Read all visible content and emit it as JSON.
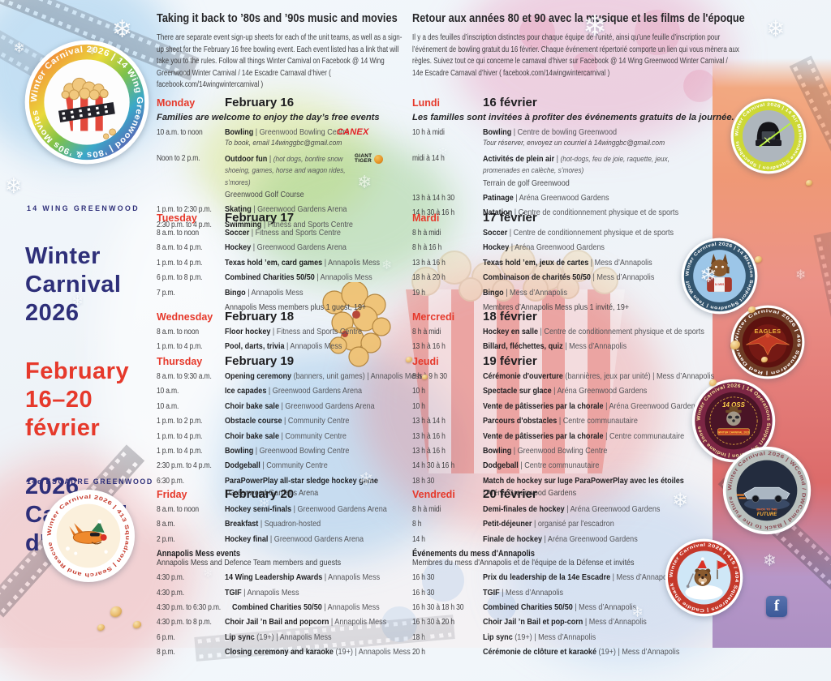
{
  "sidebar": {
    "wing_en": "14 WING GREENWOOD",
    "title_en": "Winter\nCarnival\n2026",
    "dates": "February\n16–20\nfévrier",
    "title_fr": "2026\nCarnaval\nd'hiver",
    "wing_fr": "14e ESCADRE GREENWOOD"
  },
  "english": {
    "heading": "Taking it back to ’80s and ’90s music and movies",
    "intro": "There are separate event sign-up sheets for each of the unit teams, as well as a sign-up sheet for the February 16 free bowling event. Each event listed has a link that will take you to the rules. Follow all things Winter Carnival on Facebook @ 14 Wing Greenwood Winter Carnival / 14e Escadre Carnaval d’hiver ( facebook.com/14wingwintercarnival )",
    "days": [
      {
        "day": "Monday",
        "date": "February 16",
        "subtitle": "Families are welcome to enjoy the day’s free events",
        "events": [
          {
            "time": "10 a.m. to noon",
            "bold": "Bowling",
            "rest": " | Greenwood Bowling Centre",
            "sub": "To book, email 14winggbc@gmail.com",
            "logo": "canex"
          },
          {
            "time": "Noon to 2 p.m.",
            "bold": "Outdoor fun",
            "rest": " | ",
            "rest_italic": "(hot dogs, bonfire snow shoeing, games, horse and wagon rides, s’mores)",
            "line2": "Greenwood Golf Course",
            "logo": "giant_tiger",
            "wrap": true
          },
          {
            "time": "1 p.m. to 2:30 p.m.",
            "bold": "Skating",
            "rest": " | Greenwood Gardens Arena"
          },
          {
            "time": "2:30 p.m. to 4 p.m.",
            "bold": "Swimming",
            "rest": " | Fitness and Sports Centre"
          }
        ]
      },
      {
        "day": "Tuesday",
        "date": "February 17",
        "events": [
          {
            "time": "8 a.m. to noon",
            "bold": "Soccer",
            "rest": " | Fitness and Sports Centre"
          },
          {
            "time": "8 a.m. to 4 p.m.",
            "bold": "Hockey",
            "rest": " | Greenwood Gardens Arena"
          },
          {
            "time": "1 p.m. to 4 p.m.",
            "bold": "Texas hold ’em, card games",
            "rest": " | Annapolis Mess"
          },
          {
            "time": "6 p.m. to 8 p.m.",
            "bold": "Combined Charities 50/50",
            "rest": " | Annapolis Mess"
          },
          {
            "time": "7 p.m.",
            "bold": "Bingo",
            "rest": " | Annapolis Mess"
          },
          {
            "time": "",
            "note": "Annapolis Mess members plus 1 guest, 19+"
          }
        ]
      },
      {
        "day": "Wednesday",
        "date": "February 18",
        "events": [
          {
            "time": "8 a.m. to noon",
            "bold": "Floor hockey",
            "rest": " | Fitness and Sports Centre"
          },
          {
            "time": "1 p.m. to 4 p.m.",
            "bold": "Pool, darts, trivia",
            "rest": " | Annapolis Mess"
          }
        ]
      },
      {
        "day": "Thursday",
        "date": "February 19",
        "events": [
          {
            "time": "8 a.m. to 9:30 a.m.",
            "bold": "Opening ceremony",
            "rest": " (banners, unit games) | Annapolis Mess"
          },
          {
            "time": "10 a.m.",
            "bold": "Ice capades",
            "rest": " | Greenwood Gardens Arena"
          },
          {
            "time": "10 a.m.",
            "bold": "Choir bake sale",
            "rest": " | Greenwood Gardens Arena"
          },
          {
            "time": "1 p.m. to 2 p.m.",
            "bold": "Obstacle course",
            "rest": " | Community Centre"
          },
          {
            "time": "1 p.m. to 4 p.m.",
            "bold": "Choir bake sale",
            "rest": " | Community Centre"
          },
          {
            "time": "1 p.m. to 4 p.m.",
            "bold": "Bowling",
            "rest": " | Greenwood Bowling Centre"
          },
          {
            "time": "2:30 p.m. to 4 p.m.",
            "bold": "Dodgeball",
            "rest": " | Community Centre"
          },
          {
            "time": "6:30 p.m.",
            "bold": "ParaPowerPlay all-star sledge hockey game",
            "line2": "| Greenwood Gardens Arena"
          }
        ]
      },
      {
        "day": "Friday",
        "date": "February 20",
        "events": [
          {
            "time": "8 a.m. to noon",
            "bold": "Hockey semi-finals",
            "rest": " | Greenwood Gardens Arena"
          },
          {
            "time": "8 a.m.",
            "bold": "Breakfast",
            "rest": " | Squadron-hosted"
          },
          {
            "time": "2 p.m.",
            "bold": "Hockey final",
            "rest": " | Greenwood Gardens Arena"
          },
          {
            "wide_note_bold": "Annapolis Mess events",
            "wide_note": "Annapolis Mess and Defence Team members and guests"
          },
          {
            "time": "4:30 p.m.",
            "bold": "14 Wing Leadership Awards",
            "rest": " | Annapolis Mess"
          },
          {
            "time": "4:30 p.m.",
            "bold": "TGIF",
            "rest": " | Annapolis Mess"
          },
          {
            "time": "4:30 p.m. to 6:30 p.m.",
            "bold": "Combined Charities 50/50",
            "rest": " | Annapolis Mess"
          },
          {
            "time": "4:30 p.m. to 8 p.m.",
            "bold": "Choir Jail ’n Bail and popcorn",
            "rest": " | Annapolis Mess"
          },
          {
            "time": "6 p.m.",
            "bold": "Lip sync",
            "rest": " (19+) | Annapolis Mess"
          },
          {
            "time": "8 p.m.",
            "bold": "Closing ceremony and karaoke",
            "rest": " (19+) | Annapolis Mess"
          }
        ]
      }
    ]
  },
  "french": {
    "heading": "Retour aux années 80 et 90 avec la musique et les films de l'époque",
    "intro": "Il y a des feuilles d’inscription distinctes pour chaque équipe de l’unité, ainsi qu’une feuille d’inscription pour l’événement de bowling gratuit du 16 février. Chaque événement répertorié comporte un lien qui vous mènera aux règles. Suivez tout ce qui concerne le carnaval d’hiver sur Facebook @ 14 Wing Greenwood Winter Carnival / 14e Escadre Carnaval d’hiver ( facebook.com/14wingwintercarnival )",
    "days": [
      {
        "day": "Lundi",
        "date": "16 février",
        "subtitle": "Les familles sont invitées à profiter des événements gratuits de la journée.",
        "events": [
          {
            "time": "10 h à midi",
            "bold": "Bowling",
            "rest": " | Centre de bowling Greenwood",
            "sub": "Tour réserver, envoyez un courriel à 14winggbc@gmail.com"
          },
          {
            "time": "midi à 14 h",
            "bold": "Activités de plein air",
            "rest": " | ",
            "rest_italic": "(hot-dogs, feu de joie, raquette, jeux, promenades en calèche, s’mores)",
            "line2": "Terrain de golf Greenwood",
            "wrap": true
          },
          {
            "time": "13 h à 14 h 30",
            "bold": "Patinage",
            "rest": " | Aréna Greenwood Gardens"
          },
          {
            "time": "14 h 30 à 16 h",
            "bold": "Natation",
            "rest": " | Centre de conditionnement physique et de sports"
          }
        ]
      },
      {
        "day": "Mardi",
        "date": "17 février",
        "events": [
          {
            "time": "8 h à midi",
            "bold": "Soccer",
            "rest": " | Centre de conditionnement physique et de sports"
          },
          {
            "time": "8 h à 16 h",
            "bold": "Hockey",
            "rest": " | Aréna Greenwood Gardens"
          },
          {
            "time": "13 h à 16 h",
            "bold": "Texas hold ’em, jeux de cartes",
            "rest": " | Mess d’Annapolis"
          },
          {
            "time": "18 h à 20 h",
            "bold": "Combinaison de charités 50/50",
            "rest": " | Mess d’Annapolis"
          },
          {
            "time": "19 h",
            "bold": "Bingo",
            "rest": " | Mess d’Annapolis"
          },
          {
            "time": "",
            "note": "Membres d’Annapolis Mess plus 1 invité, 19+"
          }
        ]
      },
      {
        "day": "Mercredi",
        "date": "18 février",
        "events": [
          {
            "time": "8 h à midi",
            "bold": "Hockey en salle",
            "rest": " | Centre de conditionnement physique et de sports"
          },
          {
            "time": "13 h à 16 h",
            "bold": "Billard, fléchettes, quiz",
            "rest": " | Mess d’Annapolis"
          }
        ]
      },
      {
        "day": "Jeudi",
        "date": "19 février",
        "events": [
          {
            "time": "8 h à 9 h 30",
            "bold": "Cérémonie d'ouverture",
            "rest": " (bannières, jeux par unité) | Mess d’Annapolis"
          },
          {
            "time": "10 h",
            "bold": "Spectacle sur glace",
            "rest": " | Aréna Greenwood Gardens"
          },
          {
            "time": "10 h",
            "bold": "Vente de pâtisseries par la chorale",
            "rest": " | Aréna Greenwood Gardens"
          },
          {
            "time": "13 h à 14 h",
            "bold": "Parcours d'obstacles",
            "rest": " | Centre communautaire"
          },
          {
            "time": "13 h à 16 h",
            "bold": "Vente de pâtisseries par la chorale",
            "rest": " | Centre communautaire"
          },
          {
            "time": "13 h à 16 h",
            "bold": "Bowling",
            "rest": " | Greenwood Bowling Centre"
          },
          {
            "time": "14 h 30 à 16 h",
            "bold": "Dodgeball",
            "rest": " | Centre communautaire"
          },
          {
            "time": "18 h 30",
            "bold": "Match de hockey sur luge ParaPowerPlay avec les étoiles",
            "line2": "| Aréna Greenwood Gardens"
          }
        ]
      },
      {
        "day": "Vendredi",
        "date": "20 février",
        "events": [
          {
            "time": "8 h à midi",
            "bold": "Demi-finales de hockey",
            "rest": " | Aréna Greenwood Gardens"
          },
          {
            "time": "8 h",
            "bold": "Petit-déjeuner",
            "rest": " | organisé par l'escadron"
          },
          {
            "time": "14 h",
            "bold": "Finale de hockey",
            "rest": " | Aréna Greenwood Gardens"
          },
          {
            "wide_note_bold": "Événements du mess d'Annapolis",
            "wide_note": "Membres du mess d'Annapolis et de l'équipe de la Défense et invités"
          },
          {
            "time": "16 h 30",
            "bold": "Prix du leadership de la 14e Escadre",
            "rest": " | Mess d’Annapolis"
          },
          {
            "time": "16 h 30",
            "bold": "TGIF",
            "rest": " | Mess d’Annapolis"
          },
          {
            "time": "16 h 30 à 18 h 30",
            "bold": "Combined Charities 50/50",
            "rest": " | Mess d’Annapolis"
          },
          {
            "time": "16 h 30 à 20 h",
            "bold": "Choir Jail ’n Bail et pop-corn",
            "rest": " | Mess d’Annapolis"
          },
          {
            "time": "18 h",
            "bold": "Lip sync",
            "rest": " (19+) | Mess d’Annapolis"
          },
          {
            "time": "20 h",
            "bold": "Cérémonie de clôture et karaoké",
            "rest": " (19+) | Mess d’Annapolis"
          }
        ]
      }
    ]
  },
  "logos": {
    "canex": "CANEX",
    "giant_tiger": "GIANT TIGER"
  },
  "icons": {
    "snowflake": "❄",
    "facebook": "f"
  },
  "badges": [
    {
      "id": "main-logo",
      "ring_text": "Winter Carnival 2026 | 14 Wing Greenwood | ’80s & ’90s Movies"
    },
    {
      "id": "spaceballs",
      "ring_text": "Winter Carnival 2026 | 14 Air Maintenance Squadron | Spaceballs",
      "ring_color": "#cdd835",
      "text_color": "#ffffff"
    },
    {
      "id": "teen-wolf",
      "ring_text": "Winter Carnival 2026 | 14 Mission Support Squadron | Teen Wolf",
      "ring_color": "#33556e",
      "text_color": "#ffffff",
      "center_text": "14 MSS"
    },
    {
      "id": "red-dawn",
      "ring_text": "Winter Carnival 2026 | 405 Squadron | Red Dawn",
      "ring_color": "#6e3b24",
      "text_color": "#ffffff",
      "center_text": "EAGLES"
    },
    {
      "id": "oss",
      "ring_text": "Winter Carnival 2026 | 14 Operations Support Squadron | Indiana Jones",
      "ring_color": "#7c2644",
      "text_color": "#f5e29a",
      "center_text": "14 OSS",
      "center_text2": "Winter Carnival 2026"
    },
    {
      "id": "bttf",
      "ring_text": "Winter Carnival 2026 | WComd / DWComd | Back to the Future",
      "ring_color": "#b9c0bd",
      "text_color": "#8a4a52",
      "center_text": "BACK TO THE FUTURE"
    },
    {
      "id": "caddie-shack",
      "ring_text": "Winter Carnival 2026 | 415 / 404 Squadrons | Caddie Shack",
      "ring_color": "#c5392b",
      "text_color": "#ffffff"
    },
    {
      "id": "sqn-413",
      "ring_text": "Winter Carnival 2026 | 413 Squadron | Search and Rescue",
      "ring_color": "#ffffff",
      "text_color": "#c5392b"
    }
  ],
  "colors": {
    "red": "#e6392b",
    "navy": "#2e2f79"
  }
}
